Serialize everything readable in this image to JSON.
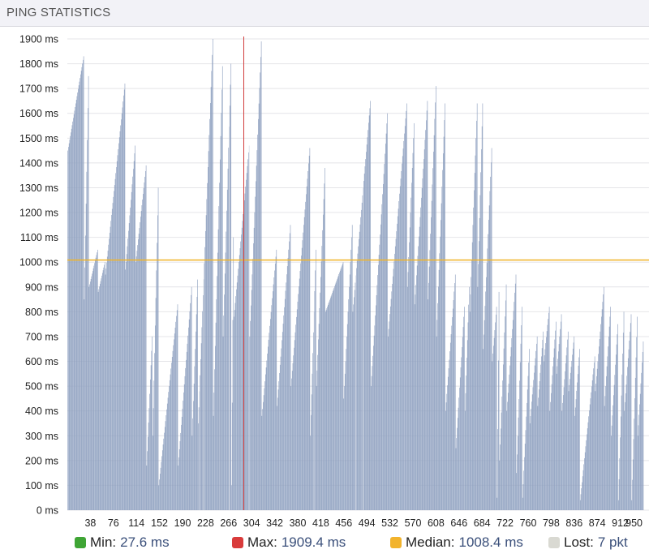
{
  "header": {
    "title": "PING STATISTICS"
  },
  "colors": {
    "bar": "#8fa1c0",
    "lost": "#cfd6e2",
    "median": "#f0b429",
    "max_marker": "#d23c3c",
    "min_swatch": "#3fa535",
    "max_swatch": "#d93b3b",
    "median_swatch": "#f2b32c",
    "lost_swatch": "#d9d9d2",
    "grid": "#e4e4e8"
  },
  "legend": {
    "min_label": "Min:",
    "min_value": "27.6 ms",
    "max_label": "Max:",
    "max_value": "1909.4 ms",
    "median_label": "Median:",
    "median_value": "1008.4 ms",
    "lost_label": "Lost:",
    "lost_value": "7 pkt"
  },
  "chart_data": {
    "type": "bar",
    "y_unit": "ms",
    "ylim": [
      0,
      1900
    ],
    "yticks": [
      0,
      100,
      200,
      300,
      400,
      500,
      600,
      700,
      800,
      900,
      1000,
      1100,
      1200,
      1300,
      1400,
      1500,
      1600,
      1700,
      1800,
      1900
    ],
    "ytick_labels": [
      "0 ms",
      "100 ms",
      "200 ms",
      "300 ms",
      "400 ms",
      "500 ms",
      "600 ms",
      "700 ms",
      "800 ms",
      "900 ms",
      "1000 ms",
      "1100 ms",
      "1200 ms",
      "1300 ms",
      "1400 ms",
      "1500 ms",
      "1600 ms",
      "1700 ms",
      "1800 ms",
      "1900 ms"
    ],
    "xlim": [
      1,
      950
    ],
    "xticks": [
      38,
      76,
      114,
      152,
      190,
      228,
      266,
      304,
      342,
      380,
      418,
      456,
      494,
      532,
      570,
      608,
      646,
      684,
      722,
      760,
      798,
      836,
      874,
      912,
      950
    ],
    "median": 1008.4,
    "max_at": 291,
    "grid": true,
    "segments": [
      [
        1,
        1450,
        27,
        1830
      ],
      [
        28,
        850,
        35,
        1750
      ],
      [
        36,
        900,
        50,
        1050
      ],
      [
        51,
        880,
        62,
        1000
      ],
      [
        63,
        950,
        95,
        1720
      ],
      [
        96,
        970,
        112,
        1470
      ],
      [
        113,
        1000,
        130,
        1390
      ],
      [
        131,
        180,
        140,
        700
      ],
      [
        141,
        300,
        150,
        1300
      ],
      [
        151,
        100,
        182,
        830
      ],
      [
        183,
        180,
        205,
        900
      ],
      [
        206,
        300,
        215,
        930
      ],
      [
        216,
        350,
        240,
        1900
      ],
      [
        241,
        380,
        256,
        1790
      ],
      [
        257,
        700,
        270,
        1800
      ],
      [
        271,
        100,
        274,
        1100
      ],
      [
        275,
        780,
        300,
        1470
      ],
      [
        301,
        700,
        320,
        1890
      ],
      [
        321,
        380,
        345,
        1050
      ],
      [
        346,
        420,
        368,
        1150
      ],
      [
        369,
        500,
        400,
        1460
      ],
      [
        401,
        300,
        410,
        1050
      ],
      [
        411,
        500,
        425,
        1380
      ],
      [
        426,
        800,
        455,
        1000
      ],
      [
        456,
        450,
        470,
        1150
      ],
      [
        471,
        800,
        500,
        1650
      ],
      [
        501,
        500,
        528,
        1600
      ],
      [
        529,
        700,
        560,
        1640
      ],
      [
        561,
        900,
        572,
        1560
      ],
      [
        573,
        830,
        594,
        1650
      ],
      [
        595,
        850,
        608,
        1710
      ],
      [
        609,
        700,
        623,
        1640
      ],
      [
        624,
        400,
        640,
        950
      ],
      [
        641,
        250,
        655,
        820
      ],
      [
        656,
        400,
        663,
        900
      ],
      [
        664,
        800,
        676,
        1640
      ],
      [
        677,
        900,
        685,
        1640
      ],
      [
        686,
        650,
        700,
        1460
      ],
      [
        701,
        600,
        708,
        820
      ],
      [
        709,
        50,
        712,
        880
      ],
      [
        713,
        200,
        724,
        910
      ],
      [
        725,
        400,
        740,
        950
      ],
      [
        741,
        150,
        750,
        820
      ],
      [
        751,
        50,
        762,
        650
      ],
      [
        763,
        350,
        775,
        700
      ],
      [
        776,
        420,
        785,
        720
      ],
      [
        786,
        600,
        795,
        820
      ],
      [
        796,
        400,
        806,
        760
      ],
      [
        807,
        550,
        815,
        790
      ],
      [
        816,
        400,
        826,
        720
      ],
      [
        827,
        480,
        836,
        700
      ],
      [
        837,
        380,
        845,
        650
      ],
      [
        846,
        40,
        870,
        620
      ],
      [
        871,
        480,
        885,
        900
      ],
      [
        886,
        420,
        896,
        820
      ],
      [
        897,
        300,
        908,
        750
      ],
      [
        909,
        40,
        918,
        800
      ],
      [
        919,
        400,
        930,
        790
      ],
      [
        931,
        40,
        940,
        780
      ],
      [
        941,
        300,
        950,
        680
      ]
    ],
    "lost_x": [
      218,
      225,
      267,
      300,
      407,
      476,
      488
    ]
  }
}
